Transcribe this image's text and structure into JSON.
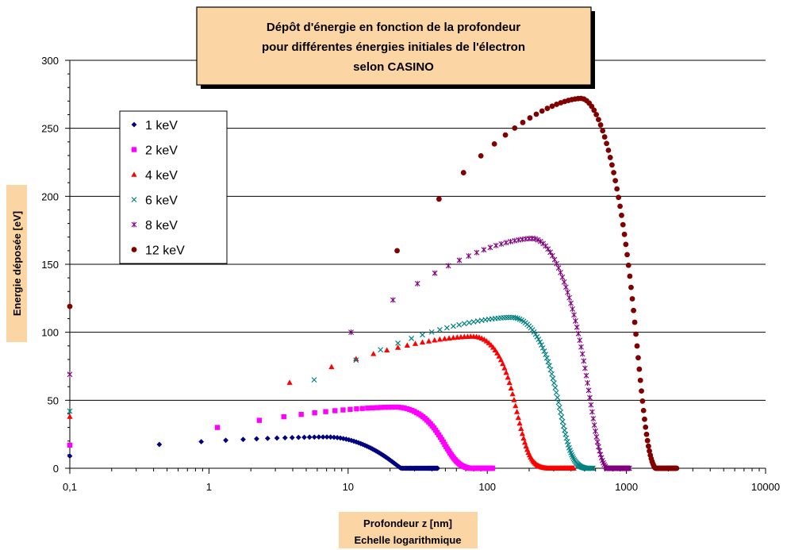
{
  "chart_data": {
    "type": "scatter",
    "title_lines": [
      "Dépôt d'énergie en fonction de la profondeur",
      "pour différentes énergies initiales de l'électron",
      "selon CASINO"
    ],
    "xlabel_lines": [
      "Profondeur z [nm]",
      "Echelle logarithmique"
    ],
    "ylabel": "Energie déposée [eV]",
    "x_scale": "log",
    "xlim": [
      0.1,
      10000
    ],
    "ylim": [
      0,
      300
    ],
    "x_ticks": [
      0.1,
      1,
      10,
      100,
      1000,
      10000
    ],
    "x_tick_labels": [
      "0,1",
      "1",
      "10",
      "100",
      "1000",
      "10000"
    ],
    "y_ticks": [
      0,
      50,
      100,
      150,
      200,
      250,
      300
    ],
    "y_tick_labels": [
      "0",
      "50",
      "100",
      "150",
      "200",
      "250",
      "300"
    ],
    "grid": "horizontal",
    "legend_position": "top-left",
    "colors": {
      "title_box": "#FCD5A5",
      "label_box": "#FCD5A5",
      "grid": "#000000"
    },
    "series": [
      {
        "name": "1 keV",
        "marker": "diamond",
        "color": "#000080",
        "x0": 0.1,
        "y0": 9,
        "peak_z": 7,
        "peak_y": 23,
        "slope_l": 0.14,
        "p_r": 3.5,
        "cut_z": 30,
        "width": 0.055,
        "end_z": 44,
        "step": 0.44,
        "y_at_step1": 17.5
      },
      {
        "name": "2 keV",
        "marker": "square",
        "color": "#FF00FF",
        "x0": 0.1,
        "y0": 17,
        "peak_z": 22,
        "peak_y": 45,
        "slope_l": 0.14,
        "p_r": 3.5,
        "cut_z": 55,
        "width": 0.058,
        "end_z": 110,
        "step": 1.15,
        "y_at_step1": 30
      },
      {
        "name": "4 keV",
        "marker": "triangle",
        "color": "#FF0000",
        "x0": 0.1,
        "y0": 38,
        "peak_z": 80,
        "peak_y": 97,
        "slope_l": 0.22,
        "p_r": 3.5,
        "cut_z": 175,
        "width": 0.05,
        "end_z": 420,
        "step": 3.8,
        "y_at_step1": 63
      },
      {
        "name": "6 keV",
        "marker": "x",
        "color": "#008080",
        "x0": 0.1,
        "y0": 42,
        "peak_z": 150,
        "peak_y": 111,
        "slope_l": 0.28,
        "p_r": 3.5,
        "cut_z": 360,
        "width": 0.047,
        "end_z": 580,
        "step": 5.7,
        "y_at_step1": 65
      },
      {
        "name": "8 keV",
        "marker": "star",
        "color": "#800080",
        "x0": 0.1,
        "y0": 69,
        "peak_z": 210,
        "peak_y": 169,
        "slope_l": 0.4,
        "p_r": 3.5,
        "cut_z": 620,
        "width": 0.045,
        "end_z": 1050,
        "step": 10.5,
        "y_at_step1": 100
      },
      {
        "name": "12 keV",
        "marker": "circle",
        "color": "#800000",
        "x0": 0.1,
        "y0": 119,
        "peak_z": 470,
        "peak_y": 272,
        "slope_l": 0.35,
        "p_r": 3.5,
        "cut_z": 1350,
        "width": 0.044,
        "end_z": 2300,
        "step": 22.5,
        "y_at_step1": 160
      }
    ]
  }
}
